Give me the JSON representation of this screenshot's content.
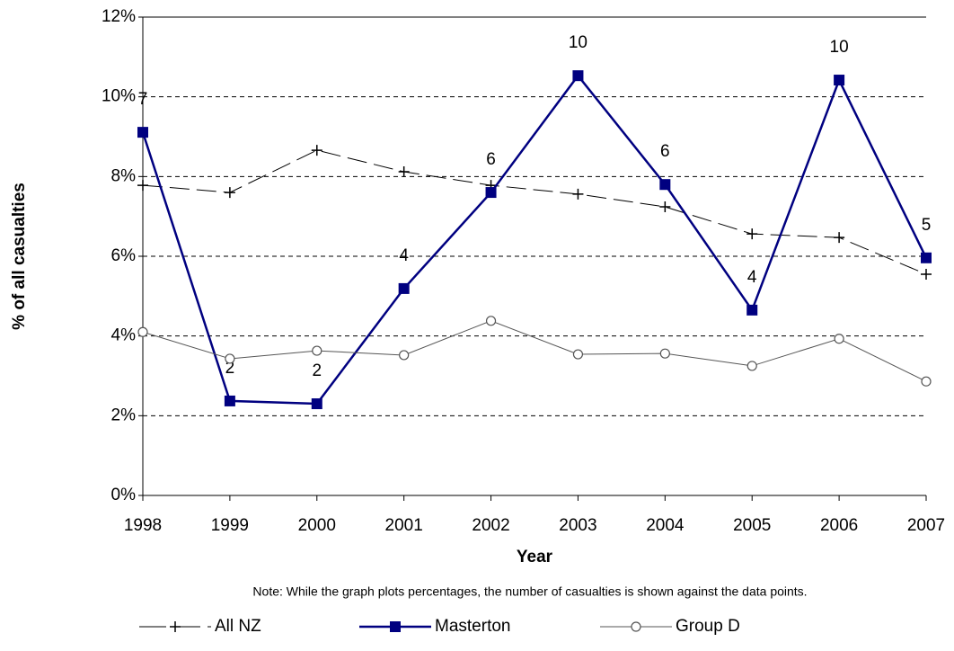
{
  "chart_data": {
    "type": "line",
    "y_label": "% of all casualties",
    "x_label": "Year",
    "note": "Note:  While the graph plots percentages, the number of casualties is shown against the data points.",
    "x": [
      1998,
      1999,
      2000,
      2001,
      2002,
      2003,
      2004,
      2005,
      2006,
      2007
    ],
    "xlim": [
      1998,
      2007
    ],
    "xticks": [
      1998,
      1999,
      2000,
      2001,
      2002,
      2003,
      2004,
      2005,
      2006,
      2007
    ],
    "ylim": [
      0,
      12
    ],
    "yticks": [
      {
        "value": 0,
        "label": "0%"
      },
      {
        "value": 2,
        "label": "2%"
      },
      {
        "value": 4,
        "label": "4%"
      },
      {
        "value": 6,
        "label": "6%"
      },
      {
        "value": 8,
        "label": "8%"
      },
      {
        "value": 10,
        "label": "10%"
      },
      {
        "value": 12,
        "label": "12%"
      }
    ],
    "grid": true,
    "legend": "bottom",
    "series": [
      {
        "name": "All NZ",
        "color": "#000000",
        "values": [
          7.78,
          7.6,
          8.66,
          8.12,
          7.78,
          7.56,
          7.24,
          6.56,
          6.47,
          5.55
        ]
      },
      {
        "name": "Masterton",
        "color": "#000080",
        "values": [
          9.11,
          2.37,
          2.3,
          5.19,
          7.6,
          10.53,
          7.8,
          4.65,
          10.42,
          5.96
        ],
        "casualty_counts": [
          7,
          2,
          2,
          4,
          6,
          10,
          6,
          4,
          10,
          5
        ]
      },
      {
        "name": "Group D",
        "color": "#555555",
        "values": [
          4.1,
          3.43,
          3.63,
          3.52,
          4.38,
          3.54,
          3.56,
          3.25,
          3.93,
          2.86
        ]
      }
    ]
  }
}
